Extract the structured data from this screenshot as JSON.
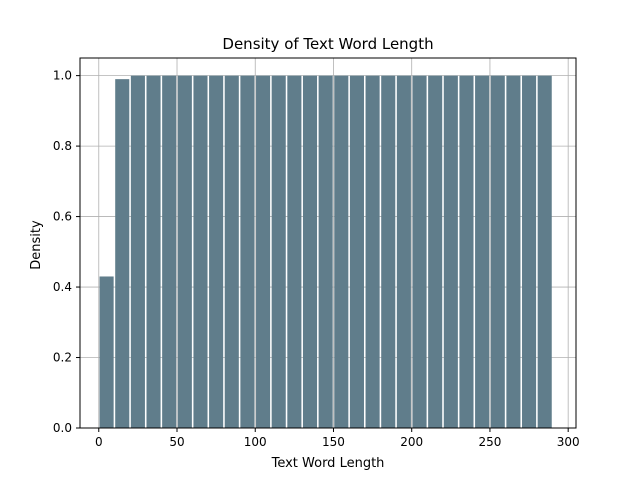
{
  "chart_data": {
    "type": "bar",
    "title": "Density of Text Word Length",
    "xlabel": "Text Word Length",
    "ylabel": "Density",
    "xlim": [
      -12,
      305
    ],
    "ylim": [
      0,
      1.05
    ],
    "x_ticks": [
      0,
      50,
      100,
      150,
      200,
      250,
      300
    ],
    "y_ticks": [
      0.0,
      0.2,
      0.4,
      0.6,
      0.8,
      1.0
    ],
    "x_tick_labels": [
      "0",
      "50",
      "100",
      "150",
      "200",
      "250",
      "300"
    ],
    "y_tick_labels": [
      "0.0",
      "0.2",
      "0.4",
      "0.6",
      "0.8",
      "1.0"
    ],
    "grid": true,
    "bar_color": "#607d8b",
    "bins": [
      {
        "start": 0,
        "end": 10,
        "value": 0.43
      },
      {
        "start": 10,
        "end": 20,
        "value": 0.99
      },
      {
        "start": 20,
        "end": 30,
        "value": 1.0
      },
      {
        "start": 30,
        "end": 40,
        "value": 1.0
      },
      {
        "start": 40,
        "end": 50,
        "value": 1.0
      },
      {
        "start": 50,
        "end": 60,
        "value": 1.0
      },
      {
        "start": 60,
        "end": 70,
        "value": 1.0
      },
      {
        "start": 70,
        "end": 80,
        "value": 1.0
      },
      {
        "start": 80,
        "end": 90,
        "value": 1.0
      },
      {
        "start": 90,
        "end": 100,
        "value": 1.0
      },
      {
        "start": 100,
        "end": 110,
        "value": 1.0
      },
      {
        "start": 110,
        "end": 120,
        "value": 1.0
      },
      {
        "start": 120,
        "end": 130,
        "value": 1.0
      },
      {
        "start": 130,
        "end": 140,
        "value": 1.0
      },
      {
        "start": 140,
        "end": 150,
        "value": 1.0
      },
      {
        "start": 150,
        "end": 160,
        "value": 1.0
      },
      {
        "start": 160,
        "end": 170,
        "value": 1.0
      },
      {
        "start": 170,
        "end": 180,
        "value": 1.0
      },
      {
        "start": 180,
        "end": 190,
        "value": 1.0
      },
      {
        "start": 190,
        "end": 200,
        "value": 1.0
      },
      {
        "start": 200,
        "end": 210,
        "value": 1.0
      },
      {
        "start": 210,
        "end": 220,
        "value": 1.0
      },
      {
        "start": 220,
        "end": 230,
        "value": 1.0
      },
      {
        "start": 230,
        "end": 240,
        "value": 1.0
      },
      {
        "start": 240,
        "end": 250,
        "value": 1.0
      },
      {
        "start": 250,
        "end": 260,
        "value": 1.0
      },
      {
        "start": 260,
        "end": 270,
        "value": 1.0
      },
      {
        "start": 270,
        "end": 280,
        "value": 1.0
      },
      {
        "start": 280,
        "end": 290,
        "value": 1.0
      }
    ]
  }
}
